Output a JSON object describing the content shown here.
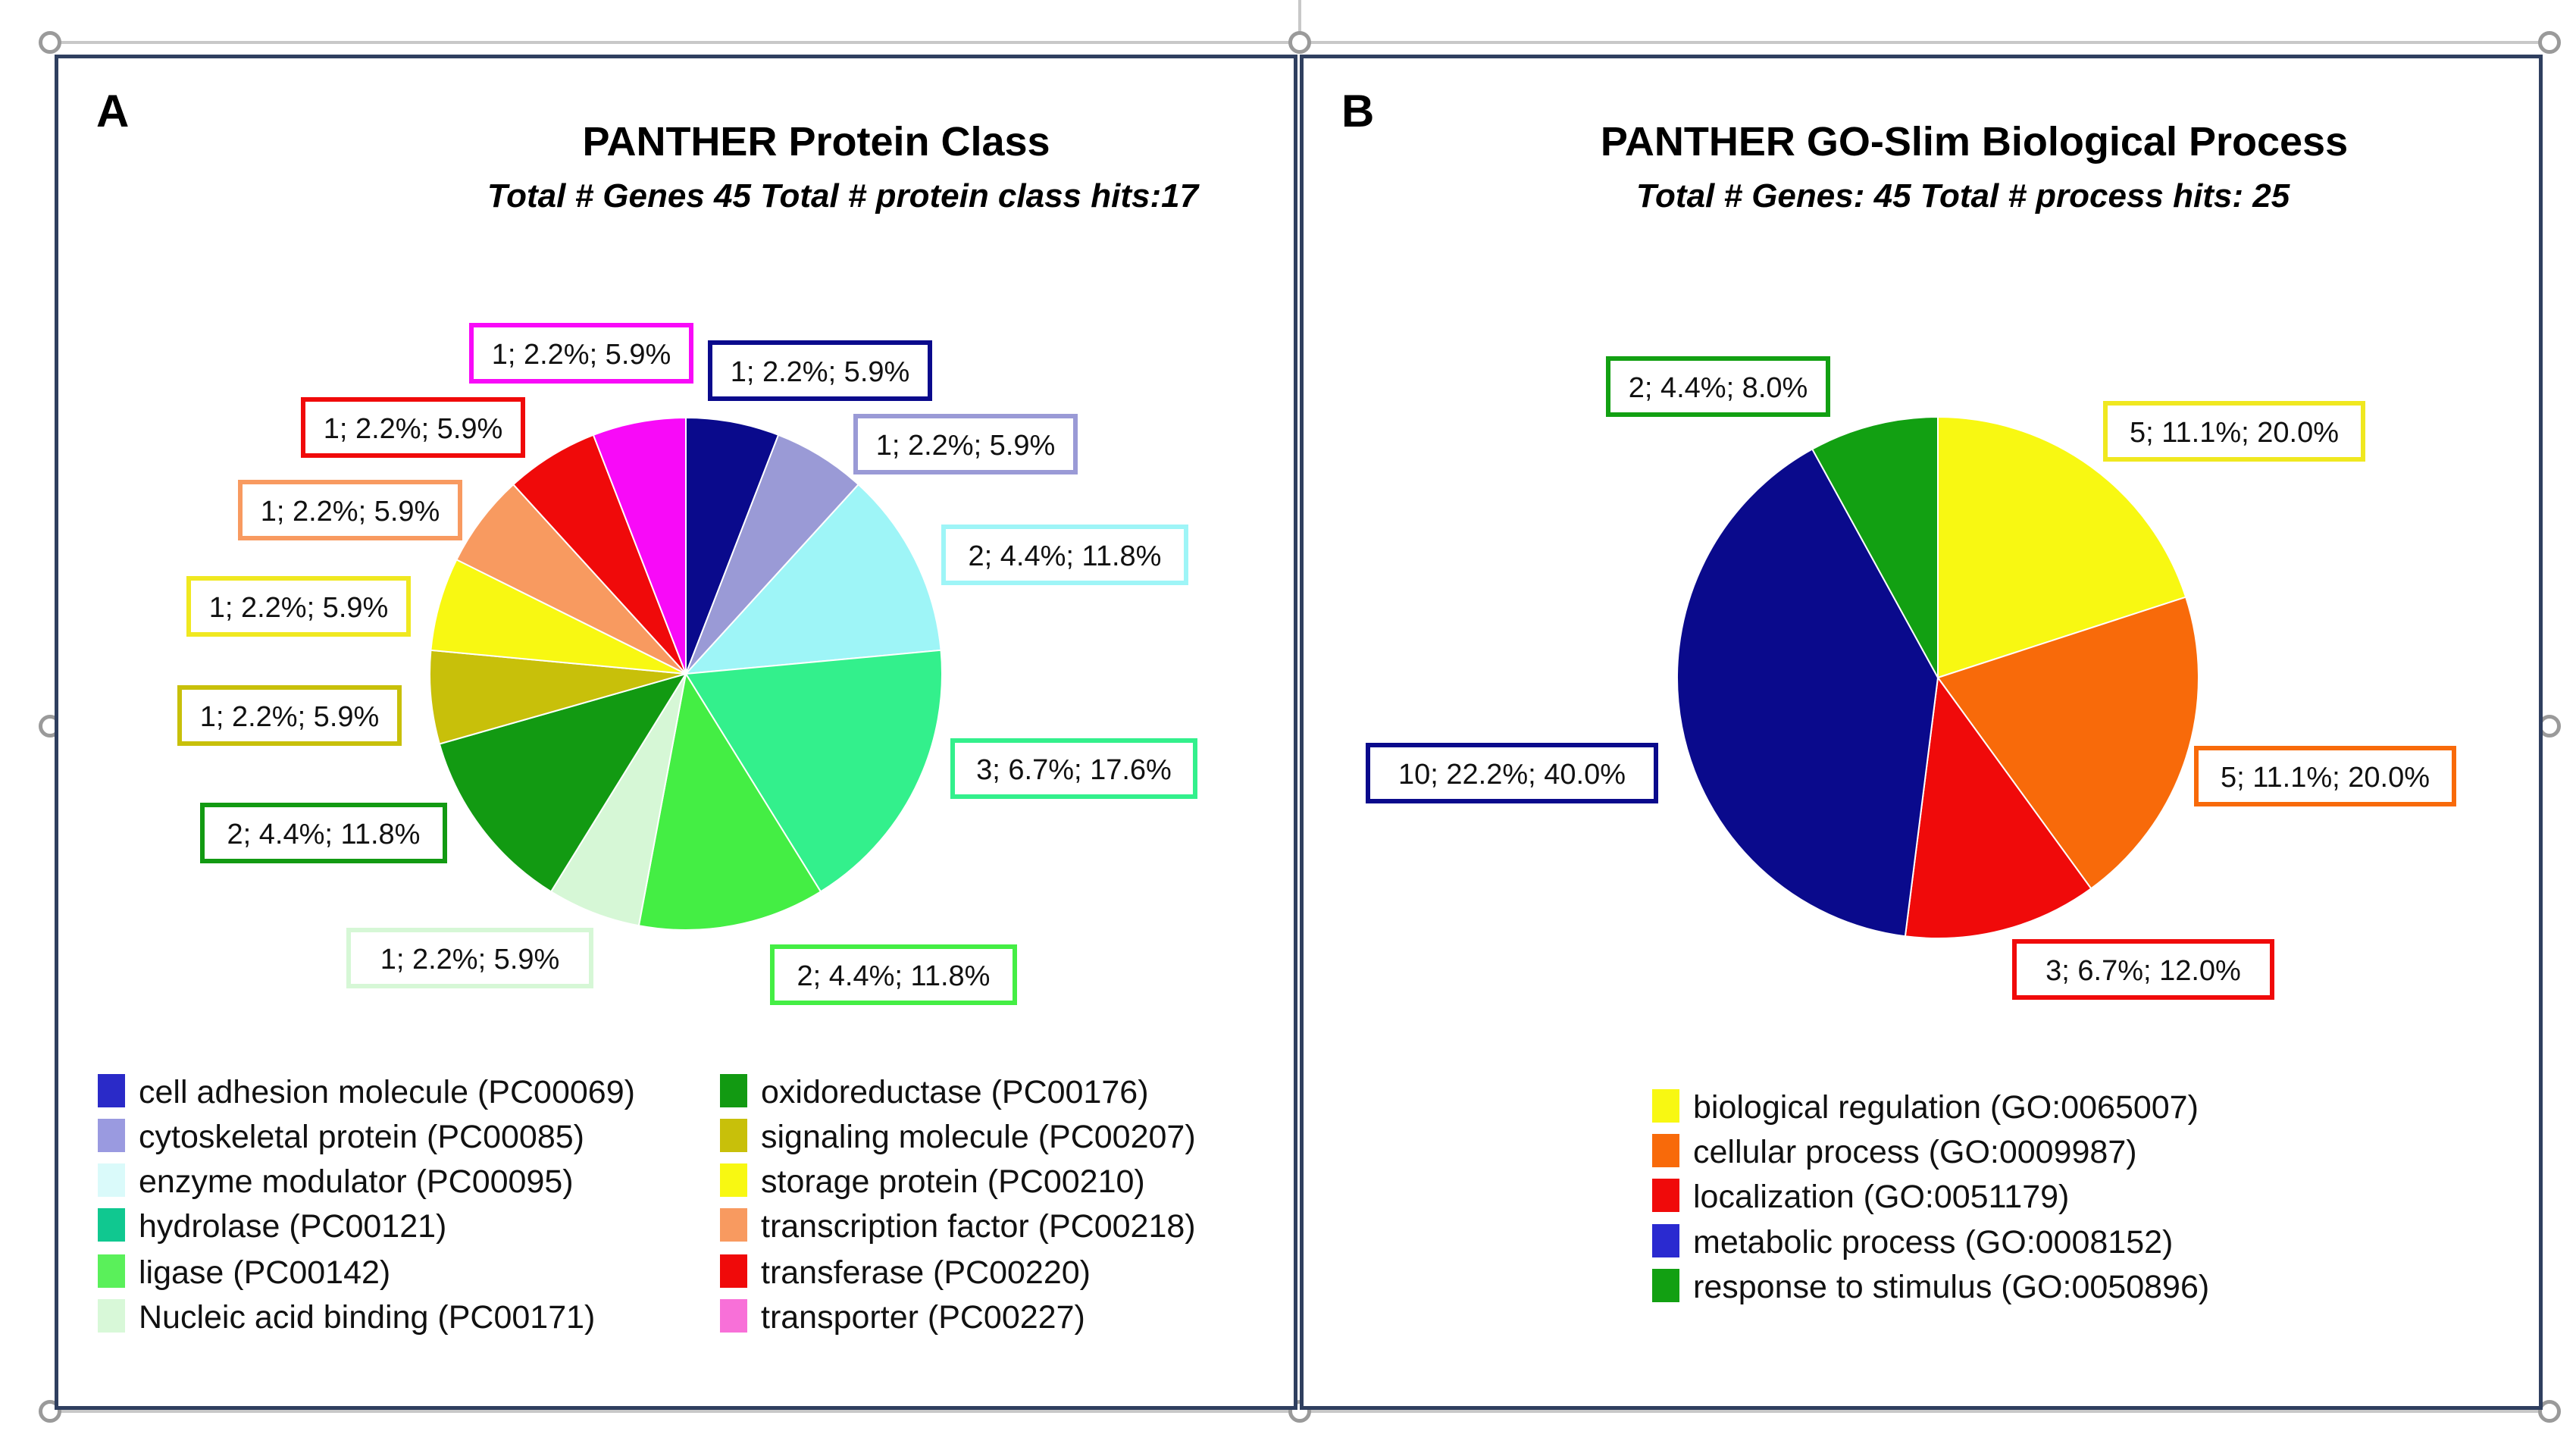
{
  "chart_data": [
    {
      "type": "pie",
      "panel_letter": "A",
      "title": "PANTHER Protein Class",
      "subtitle": "Total # Genes 45   Total # protein class hits:17",
      "slices": [
        {
          "label": "cell adhesion molecule (PC00069)",
          "value": 1,
          "percent_genes": 2.2,
          "percent_hits": 5.9,
          "data_label": "1; 2.2%; 5.9%",
          "color": "#0a0a8c"
        },
        {
          "label": "cytoskeletal protein (PC00085)",
          "value": 1,
          "percent_genes": 2.2,
          "percent_hits": 5.9,
          "data_label": "1; 2.2%; 5.9%",
          "color": "#9a9ad6"
        },
        {
          "label": "enzyme modulator (PC00095)",
          "value": 2,
          "percent_genes": 4.4,
          "percent_hits": 11.8,
          "data_label": "2; 4.4%; 11.8%",
          "color": "#9ef5f7"
        },
        {
          "label": "hydrolase (PC00121)",
          "value": 3,
          "percent_genes": 6.7,
          "percent_hits": 17.6,
          "data_label": "3; 6.7%; 17.6%",
          "color": "#33f08c"
        },
        {
          "label": "ligase (PC00142)",
          "value": 2,
          "percent_genes": 4.4,
          "percent_hits": 11.8,
          "data_label": "2; 4.4%; 11.8%",
          "color": "#44ee44"
        },
        {
          "label": "Nucleic acid binding (PC00171)",
          "value": 1,
          "percent_genes": 2.2,
          "percent_hits": 5.9,
          "data_label": "1; 2.2%; 5.9%",
          "color": "#d6f7d6"
        },
        {
          "label": "oxidoreductase (PC00176)",
          "value": 2,
          "percent_genes": 4.4,
          "percent_hits": 11.8,
          "data_label": "2; 4.4%; 11.8%",
          "color": "#129a12"
        },
        {
          "label": "signaling molecule (PC00207)",
          "value": 1,
          "percent_genes": 2.2,
          "percent_hits": 5.9,
          "data_label": "1; 2.2%; 5.9%",
          "color": "#c8c00a"
        },
        {
          "label": "storage protein (PC00210)",
          "value": 1,
          "percent_genes": 2.2,
          "percent_hits": 5.9,
          "data_label": "1; 2.2%; 5.9%",
          "color": "#f8f812"
        },
        {
          "label": "transcription factor (PC00218)",
          "value": 1,
          "percent_genes": 2.2,
          "percent_hits": 5.9,
          "data_label": "1; 2.2%; 5.9%",
          "color": "#f89a60"
        },
        {
          "label": "transferase (PC00220)",
          "value": 1,
          "percent_genes": 2.2,
          "percent_hits": 5.9,
          "data_label": "1; 2.2%; 5.9%",
          "color": "#f00a0a"
        },
        {
          "label": "transporter (PC00227)",
          "value": 1,
          "percent_genes": 2.2,
          "percent_hits": 5.9,
          "data_label": "1; 2.2%; 5.9%",
          "color": "#f80af8"
        }
      ],
      "legend_colors": [
        "#2a2ac8",
        "#9a9ae0",
        "#dafafa",
        "#10c890",
        "#5af05a",
        "#d8f8d8",
        "#129a12",
        "#c8c00a",
        "#f8f812",
        "#f89a60",
        "#f00a0a",
        "#f870d8"
      ],
      "legend_placement": "bottom, two columns"
    },
    {
      "type": "pie",
      "panel_letter": "B",
      "title": "PANTHER GO-Slim Biological Process",
      "subtitle": "Total # Genes: 45   Total # process hits: 25",
      "slices": [
        {
          "label": "biological regulation (GO:0065007)",
          "value": 5,
          "percent_genes": 11.1,
          "percent_hits": 20.0,
          "data_label": "5; 11.1%; 20.0%",
          "color": "#f8f812"
        },
        {
          "label": "cellular process (GO:0009987)",
          "value": 5,
          "percent_genes": 11.1,
          "percent_hits": 20.0,
          "data_label": "5; 11.1%; 20.0%",
          "color": "#f86a0a"
        },
        {
          "label": "localization (GO:0051179)",
          "value": 3,
          "percent_genes": 6.7,
          "percent_hits": 12.0,
          "data_label": "3; 6.7%; 12.0%",
          "color": "#f00a0a"
        },
        {
          "label": "metabolic process (GO:0008152)",
          "value": 10,
          "percent_genes": 22.2,
          "percent_hits": 40.0,
          "data_label": "10; 22.2%; 40.0%",
          "color": "#0a0a8c"
        },
        {
          "label": "response to stimulus (GO:0050896)",
          "value": 2,
          "percent_genes": 4.4,
          "percent_hits": 8.0,
          "data_label": "2; 4.4%; 8.0%",
          "color": "#12a012"
        }
      ],
      "legend_colors": [
        "#f8f812",
        "#f86a0a",
        "#f00a0a",
        "#2a2ad0",
        "#12a012"
      ],
      "legend_placement": "bottom"
    }
  ]
}
